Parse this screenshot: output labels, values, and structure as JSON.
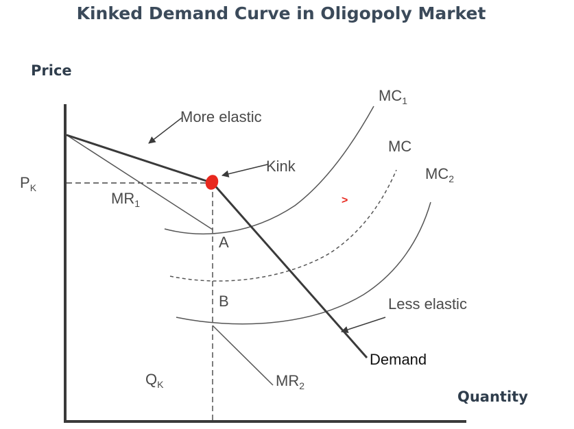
{
  "title": "Kinked Demand Curve in Oligopoly Market",
  "axes": {
    "y_label": "Price",
    "x_label": "Quantity"
  },
  "labels": {
    "p_k": {
      "main": "P",
      "sub": "K"
    },
    "q_k": {
      "main": "Q",
      "sub": "K"
    },
    "mr_1": {
      "main": "MR",
      "sub": "1"
    },
    "mr_2": {
      "main": "MR",
      "sub": "2"
    },
    "mc_1": {
      "main": "MC",
      "sub": "1"
    },
    "mc": "MC",
    "mc_2": {
      "main": "MC",
      "sub": "2"
    },
    "point_a": "A",
    "point_b": "B",
    "more_elastic": "More elastic",
    "less_elastic": "Less elastic",
    "kink": "Kink",
    "demand": "Demand",
    "red_mark": ">"
  },
  "colors": {
    "title": "#3b4a5a",
    "axis": "#3a3a3a",
    "curve": "#555555",
    "kink_point": "#e8281e",
    "red_mark": "#e8281e"
  }
}
